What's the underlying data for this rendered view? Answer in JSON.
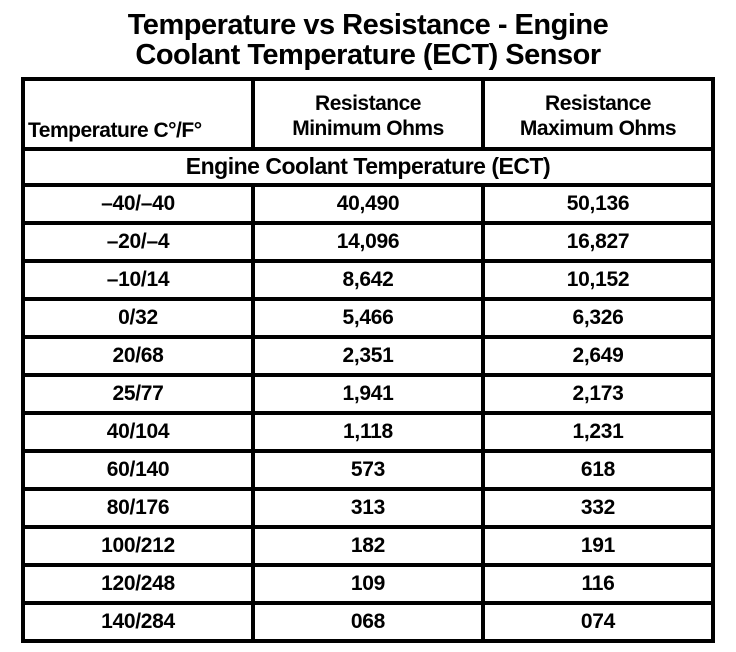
{
  "title": "Temperature vs Resistance - Engine\nCoolant Temperature (ECT) Sensor",
  "colors": {
    "ink": "#000000",
    "paper": "#ffffff"
  },
  "chart_data": {
    "type": "table",
    "title": "Temperature vs Resistance - Engine Coolant Temperature (ECT) Sensor",
    "columns": [
      {
        "label": "Temperature C°/F°",
        "display": "Temperature C°/F°"
      },
      {
        "label": "Resistance Minimum Ohms",
        "display": "Resistance\nMinimum Ohms"
      },
      {
        "label": "Resistance Maximum Ohms",
        "display": "Resistance\nMaximum Ohms"
      }
    ],
    "section_header": "Engine Coolant Temperature (ECT)",
    "rows": [
      {
        "temperature_c_f": "–40/–40",
        "resistance_min_ohms": "40,490",
        "resistance_max_ohms": "50,136"
      },
      {
        "temperature_c_f": "–20/–4",
        "resistance_min_ohms": "14,096",
        "resistance_max_ohms": "16,827"
      },
      {
        "temperature_c_f": "–10/14",
        "resistance_min_ohms": "8,642",
        "resistance_max_ohms": "10,152"
      },
      {
        "temperature_c_f": "0/32",
        "resistance_min_ohms": "5,466",
        "resistance_max_ohms": "6,326"
      },
      {
        "temperature_c_f": "20/68",
        "resistance_min_ohms": "2,351",
        "resistance_max_ohms": "2,649"
      },
      {
        "temperature_c_f": "25/77",
        "resistance_min_ohms": "1,941",
        "resistance_max_ohms": "2,173"
      },
      {
        "temperature_c_f": "40/104",
        "resistance_min_ohms": "1,118",
        "resistance_max_ohms": "1,231"
      },
      {
        "temperature_c_f": "60/140",
        "resistance_min_ohms": "573",
        "resistance_max_ohms": "618"
      },
      {
        "temperature_c_f": "80/176",
        "resistance_min_ohms": "313",
        "resistance_max_ohms": "332"
      },
      {
        "temperature_c_f": "100/212",
        "resistance_min_ohms": "182",
        "resistance_max_ohms": "191"
      },
      {
        "temperature_c_f": "120/248",
        "resistance_min_ohms": "109",
        "resistance_max_ohms": "116"
      },
      {
        "temperature_c_f": "140/284",
        "resistance_min_ohms": "068",
        "resistance_max_ohms": "074"
      }
    ]
  }
}
